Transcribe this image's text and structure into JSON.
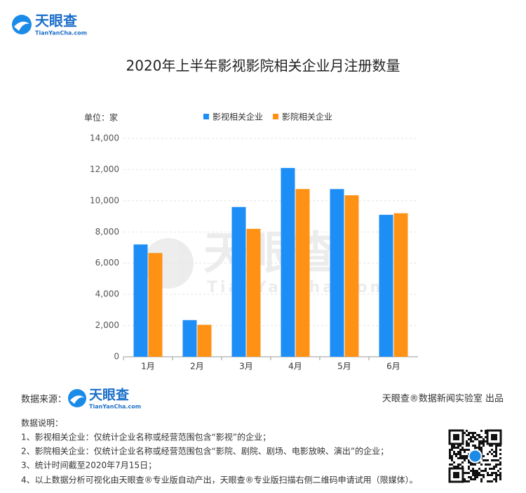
{
  "header": {
    "logo_name": "天眼查",
    "logo_url": "TianYanCha.com"
  },
  "watermark": {
    "name": "天眼查",
    "url": "TianYanCha.com"
  },
  "chart_data": {
    "type": "bar",
    "title": "2020年上半年影视影院相关企业月注册数量",
    "unit_label": "单位：家",
    "categories": [
      "1月",
      "2月",
      "3月",
      "4月",
      "5月",
      "6月"
    ],
    "series": [
      {
        "name": "影视相关企业",
        "color": "#1e8ef7",
        "values": [
          7200,
          2350,
          9600,
          12100,
          10750,
          9100
        ]
      },
      {
        "name": "影院相关企业",
        "color": "#ff9214",
        "values": [
          6650,
          2050,
          8200,
          10750,
          10350,
          9200
        ]
      }
    ],
    "ylim": [
      0,
      14000
    ],
    "yticks": [
      0,
      {
        "value": 2000,
        "label": "2,000"
      },
      {
        "value": 4000,
        "label": "4,000"
      },
      {
        "value": 6000,
        "label": "6,000"
      },
      {
        "value": 8000,
        "label": "8,000"
      },
      {
        "value": 10000,
        "label": "10,000"
      },
      {
        "value": 12000,
        "label": "12,000"
      },
      {
        "value": 14000,
        "label": "14,000"
      }
    ],
    "grid": true,
    "legend": "top"
  },
  "footer": {
    "source_label": "数据来源：",
    "logo_name": "天眼查",
    "logo_url": "TianYanCha.com",
    "credit": "天眼查®数据新闻实验室 出品",
    "notes_title": "数据说明：",
    "notes": [
      "1、影视相关企业：仅统计企业名称或经营范围包含“影视”的企业；",
      "2、影院相关企业：仅统计企业名称或经营范围包含“影院、剧院、剧场、电影放映、演出”的企业；",
      "3、统计时间截至2020年7月15日；",
      "4、以上数据分析可视化由天眼查®专业版自动产出，天眼查®专业版扫描右侧二维码申请试用（限媒体）。"
    ]
  }
}
